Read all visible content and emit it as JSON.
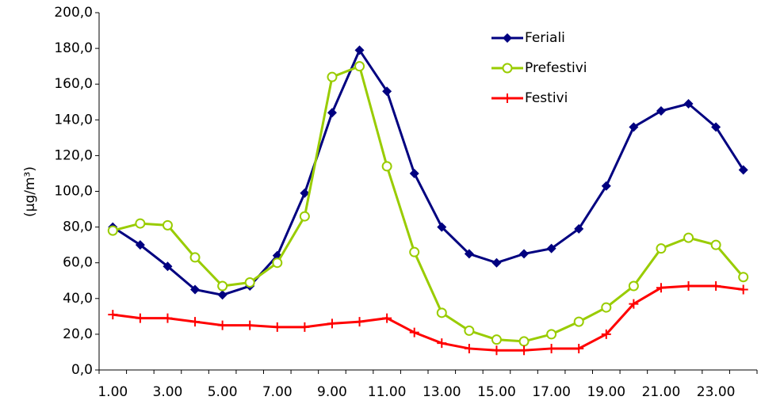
{
  "chart_data": {
    "type": "line",
    "y_label": "(µg/m³)",
    "categories": [
      "1.00",
      null,
      "3.00",
      null,
      "5.00",
      null,
      "7.00",
      null,
      "9.00",
      null,
      "11.00",
      null,
      "13.00",
      null,
      "15.00",
      null,
      "17.00",
      null,
      "19.00",
      null,
      "21.00",
      null,
      "23.00",
      null
    ],
    "series": [
      {
        "name": "Feriali",
        "color": "#000080",
        "marker": "diamond",
        "values": [
          80,
          70,
          58,
          45,
          42,
          47,
          64,
          99,
          144,
          179,
          156,
          110,
          80,
          65,
          60,
          65,
          68,
          79,
          103,
          136,
          145,
          149,
          136,
          112
        ]
      },
      {
        "name": "Prefestivi",
        "color": "#99CC00",
        "marker": "circle",
        "values": [
          78,
          82,
          81,
          63,
          47,
          49,
          60,
          86,
          164,
          170,
          114,
          66,
          32,
          22,
          17,
          16,
          20,
          27,
          35,
          47,
          68,
          74,
          70,
          52
        ]
      },
      {
        "name": "Festivi",
        "color": "#FF0000",
        "marker": "plus",
        "values": [
          31,
          29,
          29,
          27,
          25,
          25,
          24,
          24,
          26,
          27,
          29,
          21,
          15,
          12,
          11,
          11,
          12,
          12,
          20,
          37,
          46,
          47,
          47,
          45
        ]
      }
    ],
    "ylim": [
      0,
      200
    ],
    "yticks": [
      {
        "value": 0,
        "label": "0,0"
      },
      {
        "value": 20,
        "label": "20,0"
      },
      {
        "value": 40,
        "label": "40,0"
      },
      {
        "value": 60,
        "label": "60,0"
      },
      {
        "value": 80,
        "label": "80,0"
      },
      {
        "value": 100,
        "label": "100,0"
      },
      {
        "value": 120,
        "label": "120,0"
      },
      {
        "value": 140,
        "label": "140,0"
      },
      {
        "value": 160,
        "label": "160,0"
      },
      {
        "value": 180,
        "label": "180,0"
      },
      {
        "value": 200,
        "label": "200,0"
      }
    ],
    "grid": false,
    "legend": "top-right"
  }
}
